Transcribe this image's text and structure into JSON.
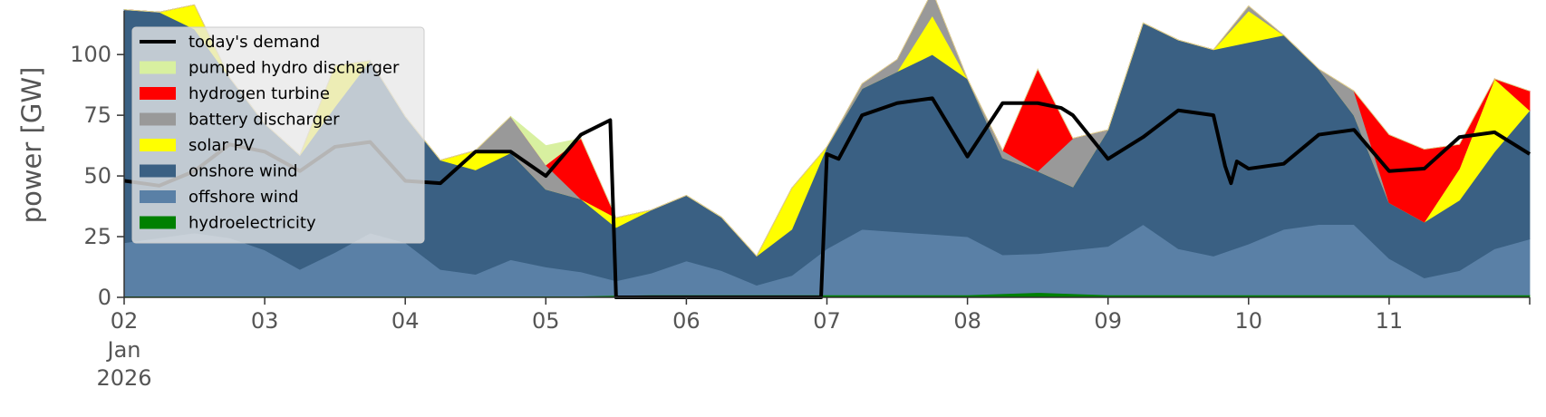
{
  "chart_data": {
    "type": "area",
    "title": "",
    "xlabel": "",
    "ylabel": "power [GW]",
    "ylim": [
      0,
      115
    ],
    "xlim": [
      0,
      240
    ],
    "x_unit": "hours since 2026-01-02 00:00",
    "xticks": [
      {
        "x": 0,
        "label": "02",
        "sub1": "Jan",
        "sub2": "2026"
      },
      {
        "x": 24,
        "label": "03"
      },
      {
        "x": 48,
        "label": "04"
      },
      {
        "x": 72,
        "label": "05"
      },
      {
        "x": 96,
        "label": "06"
      },
      {
        "x": 120,
        "label": "07"
      },
      {
        "x": 144,
        "label": "08"
      },
      {
        "x": 168,
        "label": "09"
      },
      {
        "x": 192,
        "label": "10"
      },
      {
        "x": 216,
        "label": "11"
      }
    ],
    "yticks": [
      0,
      25,
      50,
      75,
      100
    ],
    "grid": false,
    "legend_position": "top-left",
    "x": [
      0,
      6,
      12,
      18,
      24,
      30,
      36,
      42,
      48,
      54,
      60,
      66,
      72,
      78,
      84,
      90,
      96,
      102,
      108,
      114,
      120,
      126,
      132,
      138,
      144,
      150,
      156,
      162,
      168,
      174,
      180,
      186,
      192,
      198,
      204,
      210,
      216,
      222,
      228,
      234,
      240
    ],
    "series": [
      {
        "name": "hydroelectricity",
        "color": "#008000",
        "values": [
          0.5,
          0.5,
          0.5,
          0.5,
          0.5,
          0.5,
          0.5,
          0.5,
          0.5,
          0.5,
          0.5,
          0.5,
          0.5,
          0.5,
          0.8,
          1,
          1,
          1,
          1,
          1,
          1,
          1,
          1,
          1,
          1,
          1.5,
          2,
          1.5,
          1,
          1,
          1,
          1,
          1,
          1,
          1,
          1,
          1,
          1,
          1,
          1,
          1
        ]
      },
      {
        "name": "offshore wind",
        "color": "#5a80a6",
        "values": [
          22,
          24,
          26,
          24,
          19,
          11,
          18,
          26,
          22,
          11,
          9,
          15,
          12,
          10,
          6,
          9,
          14,
          10,
          4,
          8,
          19,
          27,
          26,
          25,
          24,
          16,
          16,
          18,
          20,
          29,
          19,
          16,
          21,
          27,
          29,
          29,
          15,
          7,
          10,
          19,
          23
        ]
      },
      {
        "name": "onshore wind",
        "color": "#3a6083",
        "values": [
          96,
          93,
          84,
          66,
          52,
          47,
          60,
          71,
          52,
          45,
          43,
          44,
          32,
          30,
          22,
          26,
          27,
          22,
          12,
          19,
          42,
          58,
          66,
          74,
          65,
          40,
          34,
          26,
          48,
          83,
          86,
          85,
          83,
          80,
          64,
          45,
          23,
          23,
          29,
          40,
          53
        ]
      },
      {
        "name": "solar PV",
        "color": "#ffff00",
        "values": [
          0,
          0,
          10,
          0,
          0,
          0,
          17,
          0,
          0,
          0,
          8,
          0,
          0,
          0,
          4,
          0,
          0,
          0,
          0,
          17,
          0,
          0,
          0,
          16,
          0,
          0,
          0,
          0,
          0,
          0,
          0,
          0,
          13,
          0,
          0,
          0,
          0,
          0,
          13,
          30,
          0
        ]
      },
      {
        "name": "battery discharger",
        "color": "#999999",
        "values": [
          0,
          0,
          0,
          0,
          0,
          0,
          0,
          0,
          0,
          0,
          0,
          15,
          10,
          0,
          0,
          0,
          0,
          0,
          0,
          0,
          0,
          2,
          5,
          10,
          0,
          3,
          0,
          20,
          0,
          0,
          0,
          0,
          2,
          0,
          0,
          10,
          0,
          0,
          0,
          0,
          0
        ]
      },
      {
        "name": "hydrogen turbine",
        "color": "#ff0000",
        "values": [
          0,
          0,
          0,
          0,
          0,
          0,
          0,
          0,
          0,
          0,
          0,
          0,
          0,
          25,
          0,
          0,
          0,
          0,
          0,
          0,
          0,
          0,
          0,
          0,
          0,
          0,
          42,
          0,
          0,
          0,
          0,
          0,
          0,
          0,
          0,
          0,
          28,
          30,
          10,
          0,
          8
        ]
      },
      {
        "name": "pumped hydro discharger",
        "color": "#d8f0a0",
        "values": [
          0,
          0,
          0,
          0,
          0,
          0,
          0,
          0,
          0,
          0,
          0,
          0,
          8,
          0,
          0,
          0,
          0,
          0,
          0,
          0,
          0,
          0,
          0,
          0,
          0,
          0,
          0,
          0,
          0,
          0,
          0,
          0,
          0,
          0,
          0,
          0,
          0,
          0,
          0,
          0,
          0
        ]
      }
    ],
    "demand": {
      "name": "today's demand",
      "color": "#000000",
      "x": [
        0,
        6,
        12,
        18,
        24,
        30,
        36,
        42,
        48,
        54,
        60,
        66,
        72,
        78,
        83,
        84,
        86,
        90,
        96,
        102,
        108,
        114,
        118,
        119,
        120,
        122,
        126,
        132,
        138,
        144,
        150,
        156,
        160,
        162,
        168,
        174,
        180,
        186,
        188,
        189,
        190,
        192,
        198,
        204,
        210,
        216,
        222,
        228,
        234,
        240
      ],
      "values": [
        48,
        46,
        52,
        63,
        60,
        52,
        62,
        64,
        48,
        47,
        60,
        60,
        50,
        67,
        73,
        0,
        0,
        0,
        0,
        0,
        0,
        0,
        0,
        0,
        59,
        57,
        75,
        80,
        82,
        58,
        80,
        80,
        78,
        75,
        57,
        66,
        77,
        75,
        54,
        47,
        56,
        53,
        55,
        67,
        69,
        52,
        53,
        66,
        68,
        59
      ]
    }
  }
}
